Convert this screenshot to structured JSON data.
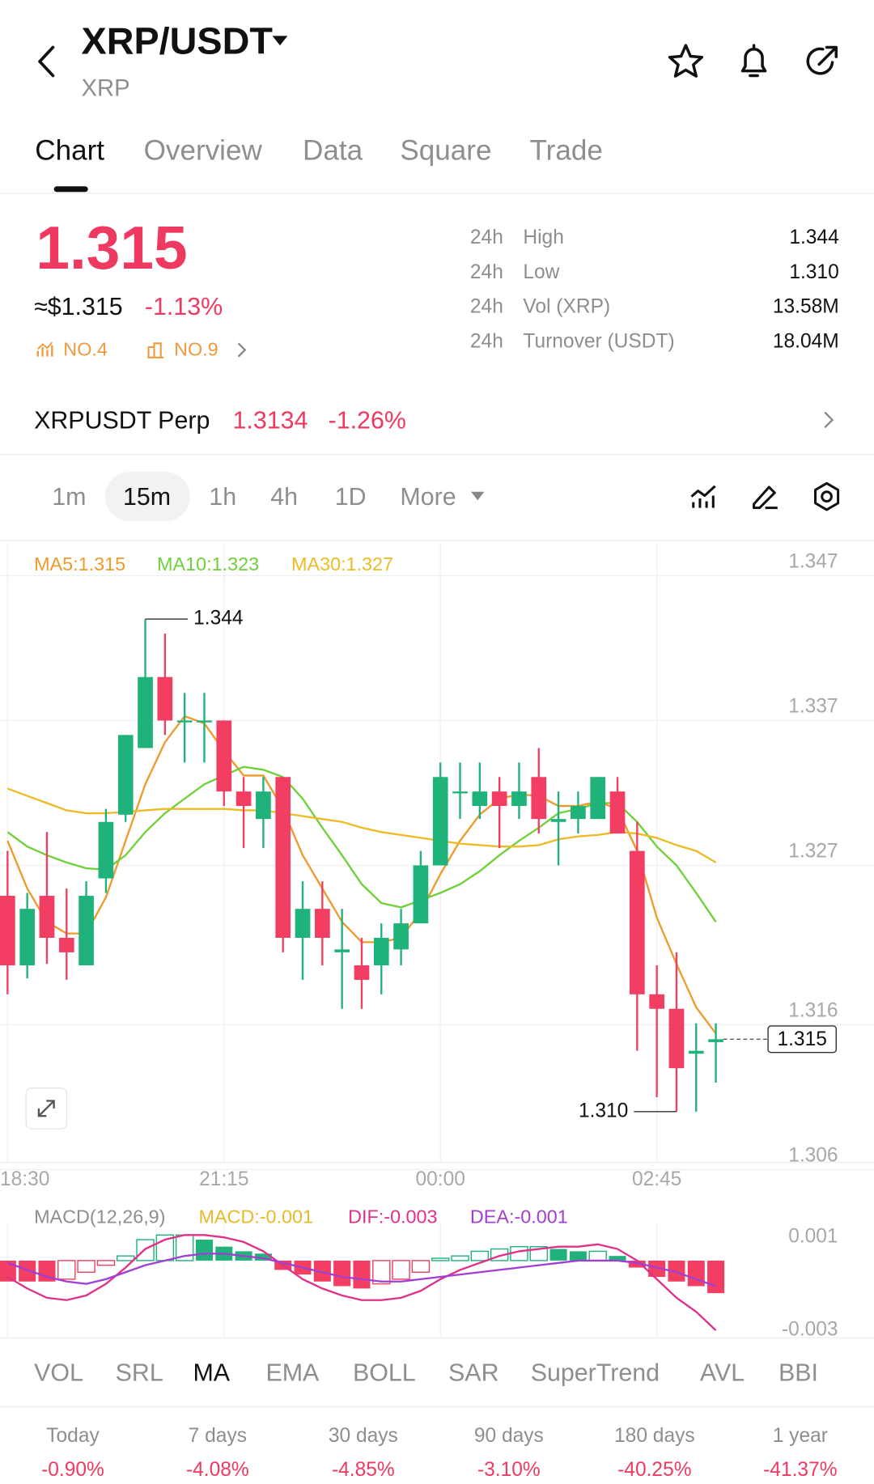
{
  "header": {
    "pair": "XRP/USDT",
    "base": "XRP"
  },
  "tabs": [
    "Chart",
    "Overview",
    "Data",
    "Square",
    "Trade"
  ],
  "price": {
    "last": "1.315",
    "usd": "≈$1.315",
    "change": "-1.13%",
    "rank_1": "NO.4",
    "rank_2": "NO.9"
  },
  "stats": [
    {
      "period": "24h",
      "label": "High",
      "value": "1.344"
    },
    {
      "period": "24h",
      "label": "Low",
      "value": "1.310"
    },
    {
      "period": "24h",
      "label": "Vol (XRP)",
      "value": "13.58M"
    },
    {
      "period": "24h",
      "label": "Turnover (USDT)",
      "value": "18.04M"
    }
  ],
  "perp": {
    "name": "XRPUSDT Perp",
    "price": "1.3134",
    "change": "-1.26%"
  },
  "intervals": [
    "1m",
    "15m",
    "1h",
    "4h",
    "1D",
    "More"
  ],
  "chart_data": {
    "type": "candlestick",
    "categories": [
      "18:30",
      null,
      null,
      null,
      null,
      null,
      null,
      null,
      null,
      null,
      null,
      "21:15",
      null,
      null,
      null,
      null,
      null,
      null,
      null,
      null,
      null,
      null,
      "00:00",
      null,
      null,
      null,
      null,
      null,
      null,
      null,
      null,
      null,
      null,
      "02:45",
      null,
      null,
      null
    ],
    "candles": [
      [
        1.3249,
        1.328,
        1.3181,
        1.3201
      ],
      [
        1.3201,
        1.3251,
        1.3192,
        1.324
      ],
      [
        1.3249,
        1.3293,
        1.3202,
        1.322
      ],
      [
        1.322,
        1.3254,
        1.3191,
        1.321
      ],
      [
        1.3201,
        1.3259,
        1.3201,
        1.3249
      ],
      [
        1.3261,
        1.3309,
        1.3251,
        1.33
      ],
      [
        1.3305,
        1.336,
        1.33,
        1.336
      ],
      [
        1.3351,
        1.344,
        1.3351,
        1.34
      ],
      [
        1.34,
        1.343,
        1.336,
        1.337
      ],
      [
        1.3369,
        1.3389,
        1.3341,
        1.337
      ],
      [
        1.3369,
        1.3389,
        1.3341,
        1.337
      ],
      [
        1.337,
        1.337,
        1.3311,
        1.3321
      ],
      [
        1.3321,
        1.3331,
        1.3282,
        1.3311
      ],
      [
        1.3302,
        1.3331,
        1.3282,
        1.3321
      ],
      [
        1.3331,
        1.3331,
        1.321,
        1.322
      ],
      [
        1.322,
        1.3259,
        1.3191,
        1.324
      ],
      [
        1.324,
        1.3259,
        1.3201,
        1.322
      ],
      [
        1.321,
        1.324,
        1.3171,
        1.3212
      ],
      [
        1.3201,
        1.322,
        1.3171,
        1.3191
      ],
      [
        1.3201,
        1.323,
        1.3181,
        1.322
      ],
      [
        1.3212,
        1.324,
        1.3201,
        1.323
      ],
      [
        1.323,
        1.328,
        1.323,
        1.327
      ],
      [
        1.327,
        1.3341,
        1.327,
        1.3331
      ],
      [
        1.332,
        1.3341,
        1.3302,
        1.3321
      ],
      [
        1.3311,
        1.3341,
        1.3302,
        1.3321
      ],
      [
        1.3321,
        1.3331,
        1.3282,
        1.3311
      ],
      [
        1.3311,
        1.3341,
        1.3302,
        1.3321
      ],
      [
        1.3331,
        1.3351,
        1.3292,
        1.3302
      ],
      [
        1.33,
        1.3321,
        1.327,
        1.3302
      ],
      [
        1.3302,
        1.3321,
        1.3292,
        1.3311
      ],
      [
        1.3302,
        1.3331,
        1.3302,
        1.3331
      ],
      [
        1.3321,
        1.3331,
        1.3292,
        1.3292
      ],
      [
        1.328,
        1.33,
        1.3142,
        1.3181
      ],
      [
        1.3181,
        1.3201,
        1.311,
        1.3171
      ],
      [
        1.3171,
        1.321,
        1.31,
        1.313
      ],
      [
        1.314,
        1.3161,
        1.31,
        1.3142
      ],
      [
        1.3148,
        1.3161,
        1.312,
        1.315
      ]
    ],
    "up_color": "#20b27b",
    "down_color": "#f23e62",
    "series": [
      {
        "name": "MA5:1.315",
        "color": "#ee9b2c",
        "values": [
          1.3287,
          1.3254,
          1.3231,
          1.3223,
          1.3223,
          1.3248,
          1.3287,
          1.3326,
          1.3355,
          1.3373,
          1.3368,
          1.3349,
          1.3332,
          1.3332,
          1.3309,
          1.3277,
          1.3254,
          1.3231,
          1.3217,
          1.3217,
          1.322,
          1.3238,
          1.3264,
          1.3287,
          1.3305,
          1.3316,
          1.3319,
          1.3318,
          1.3311,
          1.3311,
          1.3314,
          1.3309,
          1.328,
          1.3234,
          1.3202,
          1.3172,
          1.3154
        ]
      },
      {
        "name": "MA10:1.323",
        "color": "#6fd13a",
        "values": [
          1.3293,
          1.3283,
          1.3277,
          1.3272,
          1.3268,
          1.3267,
          1.3277,
          1.3293,
          1.3306,
          1.3316,
          1.3326,
          1.3332,
          1.3338,
          1.3336,
          1.3331,
          1.3316,
          1.3296,
          1.3277,
          1.3257,
          1.3244,
          1.3241,
          1.3246,
          1.3251,
          1.3257,
          1.3266,
          1.3277,
          1.3287,
          1.3296,
          1.3306,
          1.3309,
          1.3313,
          1.3313,
          1.33,
          1.3283,
          1.327,
          1.3251,
          1.3231
        ]
      },
      {
        "name": "MA30:1.327",
        "color": "#ecbb26",
        "values": [
          1.3323,
          1.3318,
          1.3313,
          1.3308,
          1.3306,
          1.3306,
          1.3307,
          1.3308,
          1.3309,
          1.3309,
          1.3309,
          1.3309,
          1.3308,
          1.3308,
          1.3306,
          1.3304,
          1.3302,
          1.33,
          1.3296,
          1.3293,
          1.3291,
          1.3289,
          1.3287,
          1.3285,
          1.3284,
          1.3283,
          1.3283,
          1.3284,
          1.3288,
          1.329,
          1.3291,
          1.3293,
          1.3292,
          1.3289,
          1.3284,
          1.328,
          1.3272
        ]
      }
    ],
    "ylim": [
      1.305,
      1.349
    ],
    "yticks": [
      1.347,
      1.337,
      1.327,
      1.316,
      1.306
    ],
    "grid": true,
    "high_marker": {
      "value": 1.344,
      "label": "1.344"
    },
    "low_marker": {
      "value": 1.31,
      "label": "1.310"
    },
    "last_price": {
      "value": 1.315,
      "label": "1.315"
    },
    "macd": {
      "title": "MACD(12,26,9)",
      "legend": [
        {
          "name": "MACD:-0.001",
          "color": "#e9b92a"
        },
        {
          "name": "DIF:-0.003",
          "color": "#e0308a"
        },
        {
          "name": "DEA:-0.001",
          "color": "#a03fd0"
        }
      ],
      "histogram": [
        -0.0009,
        -0.0009,
        -0.0009,
        -0.0008,
        -0.0005,
        -0.0002,
        0.0002,
        0.0009,
        0.0011,
        0.0011,
        0.0009,
        0.0006,
        0.0004,
        0.0003,
        -0.0004,
        -0.0006,
        -0.0009,
        -0.0011,
        -0.0012,
        -0.001,
        -0.0008,
        -0.0005,
        0.0001,
        0.0002,
        0.0004,
        0.0005,
        0.0006,
        0.0006,
        0.0005,
        0.0004,
        0.0004,
        0.0002,
        -0.0003,
        -0.0007,
        -0.0009,
        -0.0011,
        -0.0014
      ],
      "dif": [
        -0.0007,
        -0.0012,
        -0.0016,
        -0.0017,
        -0.0015,
        -0.001,
        -0.0003,
        0.0005,
        0.0009,
        0.0011,
        0.0011,
        0.001,
        0.0008,
        0.0004,
        -0.0002,
        -0.0008,
        -0.0012,
        -0.0015,
        -0.0017,
        -0.0017,
        -0.0016,
        -0.0013,
        -0.0008,
        -0.0004,
        -0.0001,
        0.0002,
        0.0004,
        0.0005,
        0.0006,
        0.0006,
        0.0007,
        0.0005,
        0.0,
        -0.0008,
        -0.0016,
        -0.0022,
        -0.003
      ],
      "dea": [
        -0.0001,
        -0.0004,
        -0.0007,
        -0.0009,
        -0.001,
        -0.0008,
        -0.0005,
        -0.0002,
        0.0,
        0.0002,
        0.0003,
        0.0003,
        0.0002,
        0.0001,
        -0.0001,
        -0.0003,
        -0.0005,
        -0.0007,
        -0.0008,
        -0.0009,
        -0.0009,
        -0.0008,
        -0.0007,
        -0.0006,
        -0.0005,
        -0.0004,
        -0.0003,
        -0.0002,
        -0.0001,
        0.0,
        0.0,
        0.0,
        -0.0001,
        -0.0003,
        -0.0005,
        -0.0008,
        -0.0011
      ],
      "ylim": [
        -0.0033,
        0.0015
      ],
      "yticks": [
        0.001,
        -0.003
      ]
    }
  },
  "indicators": [
    "VOL",
    "SRL",
    "MA",
    "EMA",
    "BOLL",
    "SAR",
    "SuperTrend",
    "AVL",
    "BBI"
  ],
  "performance": [
    {
      "period": "Today",
      "change": "-0.90%"
    },
    {
      "period": "7 days",
      "change": "-4.08%"
    },
    {
      "period": "30 days",
      "change": "-4.85%"
    },
    {
      "period": "90 days",
      "change": "-3.10%"
    },
    {
      "period": "180 days",
      "change": "-40.25%"
    },
    {
      "period": "1 year",
      "change": "-41.37%"
    }
  ]
}
